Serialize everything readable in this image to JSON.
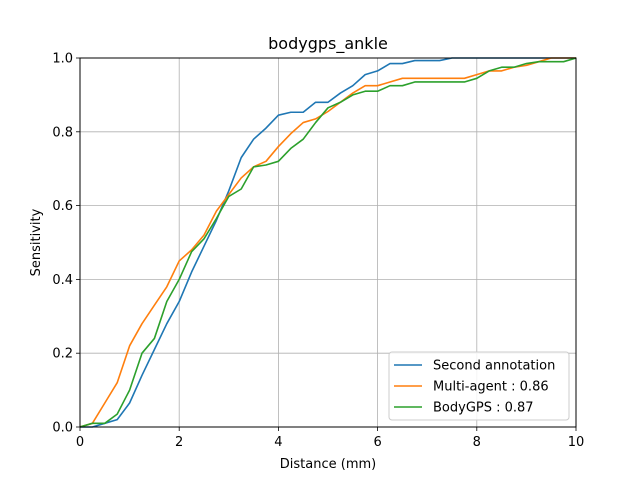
{
  "chart_data": {
    "type": "line",
    "title": "bodygps_ankle",
    "xlabel": "Distance (mm)",
    "ylabel": "Sensitivity",
    "xlim": [
      0,
      10
    ],
    "ylim": [
      0,
      1
    ],
    "xticks": [
      "0",
      "2",
      "4",
      "6",
      "8",
      "10"
    ],
    "yticks": [
      "0.0",
      "0.2",
      "0.4",
      "0.6",
      "0.8",
      "1.0"
    ],
    "grid": true,
    "legend_position": "lower-right",
    "series": [
      {
        "name": "Second annotation",
        "color": "#1f77b4",
        "x": [
          0,
          0.25,
          0.5,
          0.75,
          1.0,
          1.25,
          1.5,
          1.75,
          2.0,
          2.25,
          2.5,
          2.75,
          3.0,
          3.25,
          3.5,
          3.75,
          4.0,
          4.25,
          4.5,
          4.75,
          5.0,
          5.25,
          5.5,
          5.75,
          6.0,
          6.25,
          6.5,
          6.75,
          7.0,
          7.25,
          7.5,
          7.75,
          8.0,
          10.0
        ],
        "y": [
          0.0,
          0.0,
          0.01,
          0.02,
          0.065,
          0.14,
          0.21,
          0.28,
          0.34,
          0.42,
          0.49,
          0.56,
          0.64,
          0.73,
          0.78,
          0.81,
          0.845,
          0.853,
          0.853,
          0.88,
          0.88,
          0.905,
          0.925,
          0.955,
          0.965,
          0.985,
          0.985,
          0.993,
          0.993,
          0.993,
          1.0,
          1.0,
          1.0,
          1.0
        ]
      },
      {
        "name": "Multi-agent : 0.86",
        "color": "#ff7f0e",
        "x": [
          0,
          0.25,
          0.5,
          0.75,
          1.0,
          1.25,
          1.5,
          1.75,
          2.0,
          2.25,
          2.5,
          2.75,
          3.0,
          3.25,
          3.5,
          3.75,
          4.0,
          4.25,
          4.5,
          4.75,
          5.0,
          5.25,
          5.5,
          5.75,
          6.0,
          6.25,
          6.5,
          6.75,
          7.0,
          7.25,
          7.5,
          7.75,
          8.0,
          8.25,
          8.5,
          8.75,
          9.0,
          9.25,
          9.5,
          9.75,
          10.0
        ],
        "y": [
          0.0,
          0.01,
          0.065,
          0.12,
          0.22,
          0.28,
          0.33,
          0.38,
          0.45,
          0.48,
          0.52,
          0.585,
          0.63,
          0.675,
          0.705,
          0.72,
          0.76,
          0.795,
          0.825,
          0.835,
          0.855,
          0.88,
          0.905,
          0.925,
          0.925,
          0.935,
          0.945,
          0.945,
          0.945,
          0.945,
          0.945,
          0.945,
          0.955,
          0.965,
          0.965,
          0.975,
          0.98,
          0.99,
          1.0,
          1.0,
          1.0
        ]
      },
      {
        "name": "BodyGPS : 0.87",
        "color": "#2ca02c",
        "x": [
          0,
          0.25,
          0.5,
          0.75,
          1.0,
          1.25,
          1.5,
          1.75,
          2.0,
          2.25,
          2.5,
          2.75,
          3.0,
          3.25,
          3.5,
          3.75,
          4.0,
          4.25,
          4.5,
          4.75,
          5.0,
          5.25,
          5.5,
          5.75,
          6.0,
          6.25,
          6.5,
          6.75,
          7.0,
          7.25,
          7.5,
          7.75,
          8.0,
          8.25,
          8.5,
          8.75,
          9.0,
          9.25,
          9.5,
          9.75,
          10.0
        ],
        "y": [
          0.0,
          0.01,
          0.01,
          0.035,
          0.1,
          0.2,
          0.24,
          0.34,
          0.4,
          0.475,
          0.51,
          0.565,
          0.625,
          0.645,
          0.705,
          0.71,
          0.72,
          0.755,
          0.78,
          0.825,
          0.865,
          0.88,
          0.9,
          0.91,
          0.91,
          0.925,
          0.925,
          0.935,
          0.935,
          0.935,
          0.935,
          0.935,
          0.945,
          0.965,
          0.975,
          0.975,
          0.985,
          0.99,
          0.99,
          0.99,
          1.0
        ]
      }
    ]
  }
}
